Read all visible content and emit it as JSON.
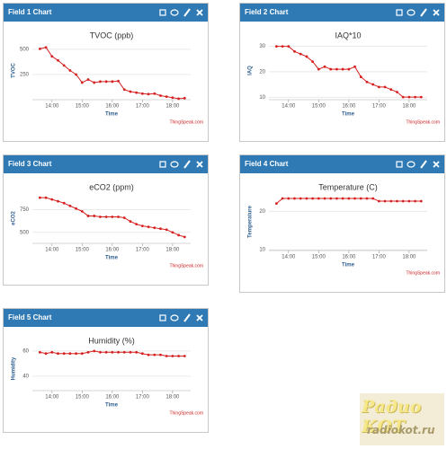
{
  "panels": [
    {
      "header": "Field 1 Chart",
      "chart": {
        "type": "line",
        "title": "TVOC (ppb)",
        "ylabel": "TVOC",
        "xlabel": "Time",
        "credit": "ThingSpeak.com",
        "color": "#d62020",
        "x": [
          13.6,
          13.8,
          14.0,
          14.2,
          14.4,
          14.6,
          14.8,
          15.0,
          15.2,
          15.4,
          15.6,
          15.8,
          16.0,
          16.2,
          16.4,
          16.6,
          16.8,
          17.0,
          17.2,
          17.4,
          17.6,
          17.8,
          18.0,
          18.2,
          18.4
        ],
        "values": [
          505,
          520,
          430,
          390,
          340,
          290,
          250,
          170,
          200,
          170,
          180,
          180,
          180,
          185,
          100,
          80,
          70,
          60,
          55,
          60,
          40,
          30,
          20,
          10,
          15
        ],
        "xlim": [
          13.35,
          18.6
        ],
        "xticks": [
          {
            "value": 14,
            "label": "14:00"
          },
          {
            "value": 15,
            "label": "15:00"
          },
          {
            "value": 16,
            "label": "16:00"
          },
          {
            "value": 17,
            "label": "17:00"
          },
          {
            "value": 18,
            "label": "18:00"
          }
        ],
        "ylim": [
          0,
          580
        ],
        "yticks": [
          250,
          500
        ]
      }
    },
    {
      "header": "Field 2 Chart",
      "chart": {
        "type": "line",
        "title": "IAQ*10",
        "ylabel": "IAQ",
        "xlabel": "Time",
        "credit": "ThingSpeak.com",
        "color": "#d62020",
        "x": [
          13.6,
          13.8,
          14.0,
          14.2,
          14.4,
          14.6,
          14.8,
          15.0,
          15.2,
          15.4,
          15.6,
          15.8,
          16.0,
          16.2,
          16.4,
          16.6,
          16.8,
          17.0,
          17.2,
          17.4,
          17.6,
          17.8,
          18.0,
          18.2,
          18.4
        ],
        "values": [
          30,
          30,
          30,
          28,
          27,
          26,
          24,
          21,
          22,
          21,
          21,
          21,
          21,
          22,
          18,
          16,
          15,
          14,
          14,
          13,
          12,
          10,
          10,
          10,
          10
        ],
        "xlim": [
          13.35,
          18.6
        ],
        "xticks": [
          {
            "value": 14,
            "label": "14:00"
          },
          {
            "value": 15,
            "label": "15:00"
          },
          {
            "value": 16,
            "label": "16:00"
          },
          {
            "value": 17,
            "label": "17:00"
          },
          {
            "value": 18,
            "label": "18:00"
          }
        ],
        "ylim": [
          9,
          32
        ],
        "yticks": [
          10,
          20,
          30
        ]
      }
    },
    {
      "header": "Field 3 Chart",
      "chart": {
        "type": "line",
        "title": "eCO2 (ppm)",
        "ylabel": "eCO2",
        "xlabel": "Time",
        "credit": "ThingSpeak.com",
        "color": "#d62020",
        "x": [
          13.6,
          13.8,
          14.0,
          14.2,
          14.4,
          14.6,
          14.8,
          15.0,
          15.2,
          15.4,
          15.6,
          15.8,
          16.0,
          16.2,
          16.4,
          16.6,
          16.8,
          17.0,
          17.2,
          17.4,
          17.6,
          17.8,
          18.0,
          18.2,
          18.4
        ],
        "values": [
          880,
          880,
          860,
          840,
          820,
          790,
          760,
          730,
          680,
          680,
          670,
          670,
          670,
          670,
          660,
          620,
          590,
          570,
          560,
          550,
          540,
          530,
          500,
          470,
          450
        ],
        "xlim": [
          13.35,
          18.6
        ],
        "xticks": [
          {
            "value": 14,
            "label": "14:00"
          },
          {
            "value": 15,
            "label": "15:00"
          },
          {
            "value": 16,
            "label": "16:00"
          },
          {
            "value": 17,
            "label": "17:00"
          },
          {
            "value": 18,
            "label": "18:00"
          }
        ],
        "ylim": [
          380,
          930
        ],
        "yticks": [
          500,
          750
        ]
      }
    },
    {
      "header": "Field 4 Chart",
      "chart": {
        "type": "line",
        "title": "Temperature (C)",
        "ylabel": "Temperature",
        "xlabel": "Time",
        "credit": "ThingSpeak.com",
        "color": "#d62020",
        "x": [
          13.6,
          13.8,
          14.0,
          14.2,
          14.4,
          14.6,
          14.8,
          15.0,
          15.2,
          15.4,
          15.6,
          15.8,
          16.0,
          16.2,
          16.4,
          16.6,
          16.8,
          17.0,
          17.2,
          17.4,
          17.6,
          17.8,
          18.0,
          18.2,
          18.4
        ],
        "values": [
          22,
          23.3,
          23.3,
          23.3,
          23.3,
          23.3,
          23.3,
          23.3,
          23.3,
          23.3,
          23.3,
          23.3,
          23.3,
          23.3,
          23.3,
          23.3,
          23.3,
          22.6,
          22.6,
          22.6,
          22.6,
          22.6,
          22.6,
          22.6,
          22.6
        ],
        "xlim": [
          13.35,
          18.6
        ],
        "xticks": [
          {
            "value": 14,
            "label": "14:00"
          },
          {
            "value": 15,
            "label": "15:00"
          },
          {
            "value": 16,
            "label": "16:00"
          },
          {
            "value": 17,
            "label": "17:00"
          },
          {
            "value": 18,
            "label": "18:00"
          }
        ],
        "ylim": [
          9.8,
          24.7
        ],
        "yticks": [
          10,
          20
        ]
      }
    },
    {
      "header": "Field 5 Chart",
      "chart": {
        "type": "line",
        "title": "Humidity (%)",
        "ylabel": "Humidity",
        "xlabel": "Time",
        "credit": "ThingSpeak.com",
        "color": "#d62020",
        "x": [
          13.6,
          13.8,
          14.0,
          14.2,
          14.4,
          14.6,
          14.8,
          15.0,
          15.2,
          15.4,
          15.6,
          15.8,
          16.0,
          16.2,
          16.4,
          16.6,
          16.8,
          17.0,
          17.2,
          17.4,
          17.6,
          17.8,
          18.0,
          18.2,
          18.4
        ],
        "values": [
          59,
          58,
          59,
          58,
          58,
          58,
          58,
          58,
          59,
          60,
          59,
          59,
          59,
          59,
          59,
          59,
          59,
          58,
          57,
          57,
          57,
          56,
          56,
          56,
          56
        ],
        "xlim": [
          13.35,
          18.6
        ],
        "xticks": [
          {
            "value": 14,
            "label": "14:00"
          },
          {
            "value": 15,
            "label": "15:00"
          },
          {
            "value": 16,
            "label": "16:00"
          },
          {
            "value": 17,
            "label": "17:00"
          },
          {
            "value": 18,
            "label": "18:00"
          }
        ],
        "ylim": [
          28.5,
          63.5
        ],
        "yticks": [
          40,
          60
        ]
      }
    }
  ],
  "watermark": {
    "title": "Радио КОТ",
    "url": "radiokot.ru"
  }
}
